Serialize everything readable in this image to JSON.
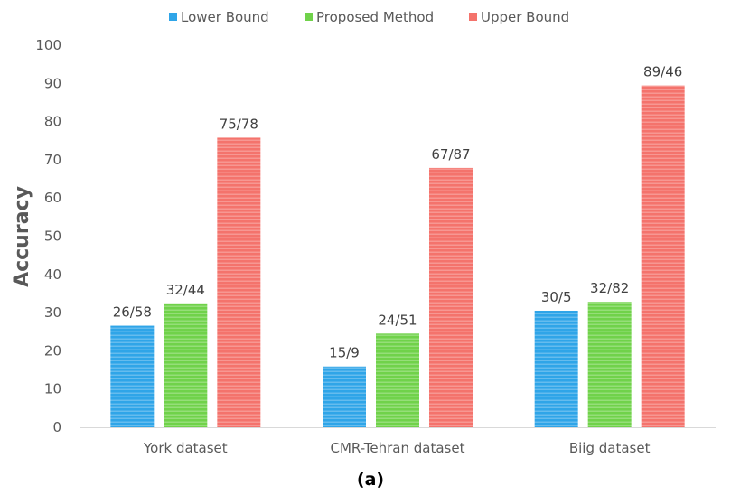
{
  "chart_data": {
    "type": "bar",
    "title": "",
    "xlabel": "",
    "ylabel": "Accuracy",
    "caption": "(a)",
    "categories": [
      "York dataset",
      "CMR-Tehran dataset",
      "Biig dataset"
    ],
    "series": [
      {
        "name": "Lower Bound",
        "color": "#2fa5e8",
        "values": [
          26.58,
          15.9,
          30.5
        ],
        "labels": [
          "26/58",
          "15/9",
          "30/5"
        ]
      },
      {
        "name": "Proposed Method",
        "color": "#70d24a",
        "values": [
          32.44,
          24.51,
          32.82
        ],
        "labels": [
          "32/44",
          "24/51",
          "32/82"
        ]
      },
      {
        "name": "Upper Bound",
        "color": "#f4736c",
        "values": [
          75.78,
          67.87,
          89.46
        ],
        "labels": [
          "75/78",
          "67/87",
          "89/46"
        ]
      }
    ],
    "ylim": [
      0,
      100
    ],
    "yticks": [
      0,
      10,
      20,
      30,
      40,
      50,
      60,
      70,
      80,
      90,
      100
    ],
    "grid": false,
    "legend_position": "top-center"
  }
}
